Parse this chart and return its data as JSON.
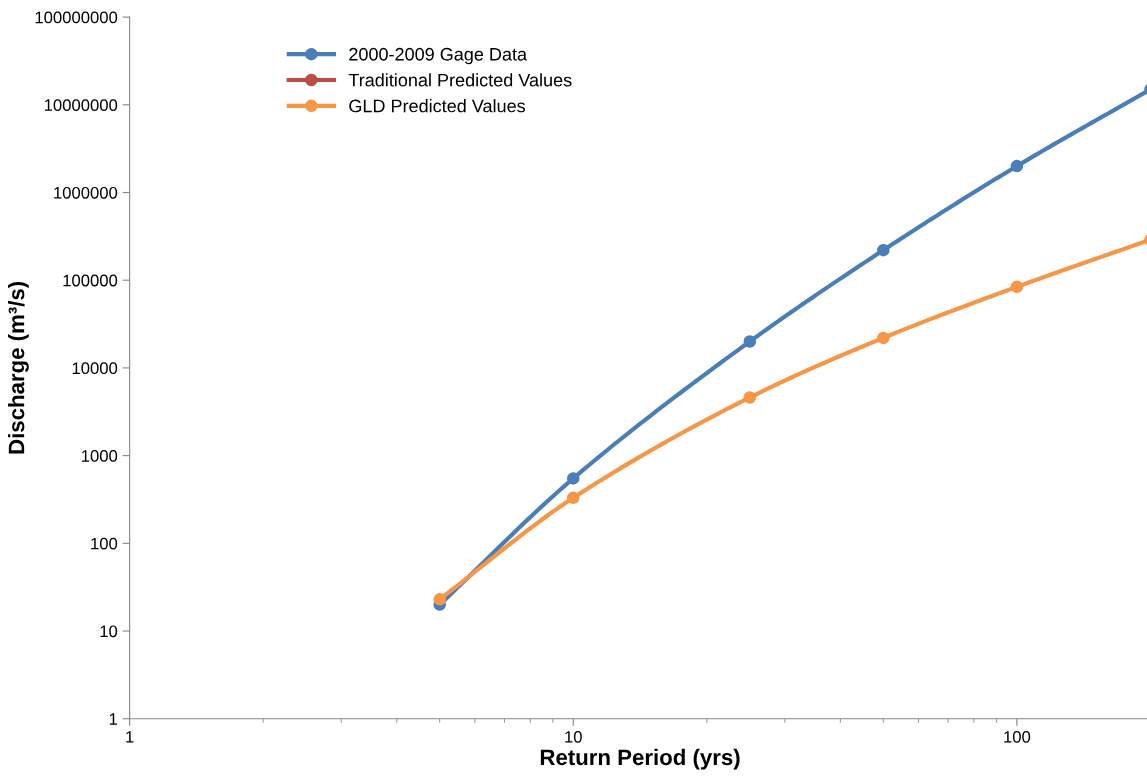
{
  "chart_data": {
    "type": "line",
    "xlabel": "Return Period (yrs)",
    "ylabel": "Discharge (m³/s)",
    "log": "xy",
    "x": [
      5,
      10,
      25,
      50,
      100,
      200
    ],
    "series": [
      {
        "name": "2000-2009 Gage Data",
        "color": "#4a7ebb",
        "values": [
          20,
          550,
          20000,
          220000,
          2000000,
          15000000
        ]
      },
      {
        "name": "Traditional Predicted Values",
        "color": "#be4b48",
        "values": [
          null,
          null,
          null,
          null,
          null,
          null
        ]
      },
      {
        "name": "GLD Predicted Values",
        "color": "#f79646",
        "values": [
          23,
          330,
          4600,
          22000,
          84000,
          290000
        ]
      }
    ],
    "xlim": [
      1,
      200
    ],
    "xticks": [
      1,
      10,
      100
    ],
    "ylim": [
      1,
      100000000
    ],
    "yticks": [
      1,
      10,
      100,
      1000,
      10000,
      100000,
      1000000,
      10000000,
      100000000
    ],
    "grid": false,
    "legend": "top left",
    "marker": "circle",
    "line_style": "solid"
  }
}
